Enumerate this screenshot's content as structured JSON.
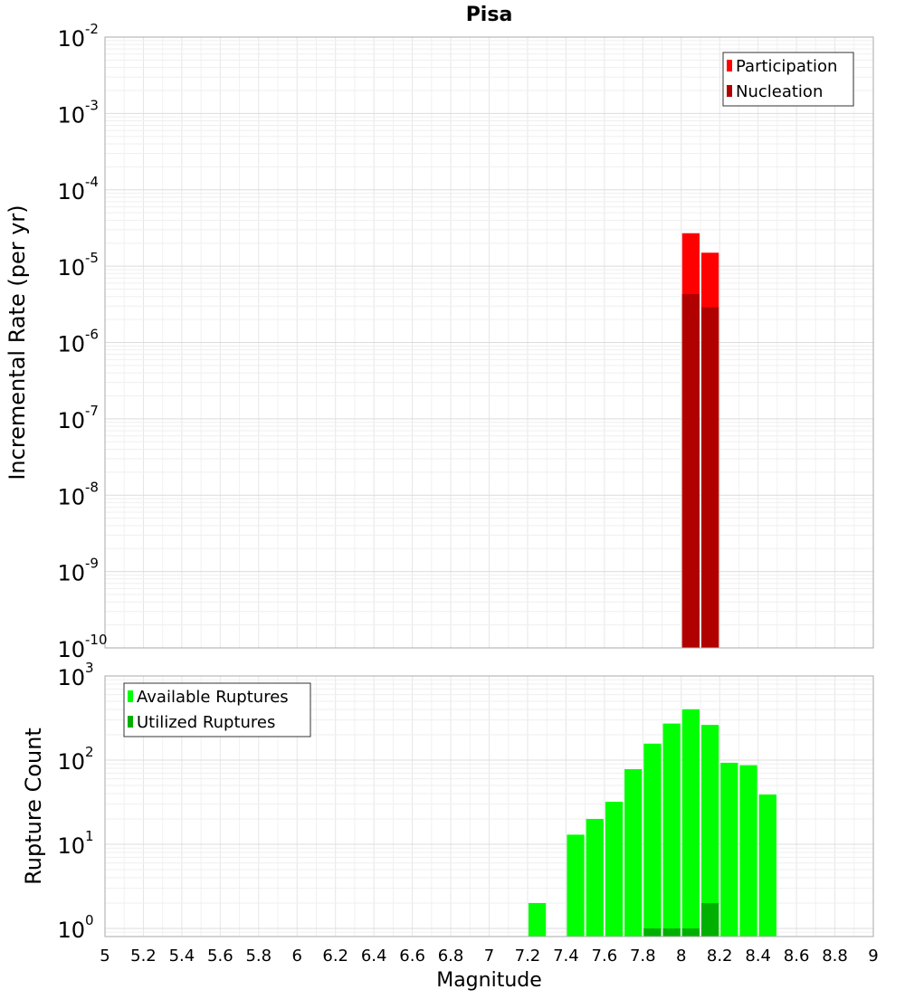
{
  "chart_data": [
    {
      "type": "bar",
      "title": "Pisa",
      "xlabel": "",
      "ylabel": "Incremental Rate (per yr)",
      "yscale": "log",
      "ylim": [
        1e-10,
        0.01
      ],
      "xlim": [
        5,
        9
      ],
      "bin_width": 0.1,
      "y_tick_labels": [
        {
          "value": 1e-10,
          "base": "10",
          "exp": "-10"
        },
        {
          "value": 1e-09,
          "base": "10",
          "exp": "-9"
        },
        {
          "value": 1e-08,
          "base": "10",
          "exp": "-8"
        },
        {
          "value": 1e-07,
          "base": "10",
          "exp": "-7"
        },
        {
          "value": 1e-06,
          "base": "10",
          "exp": "-6"
        },
        {
          "value": 1e-05,
          "base": "10",
          "exp": "-5"
        },
        {
          "value": 0.0001,
          "base": "10",
          "exp": "-4"
        },
        {
          "value": 0.001,
          "base": "10",
          "exp": "-3"
        },
        {
          "value": 0.01,
          "base": "10",
          "exp": "-2"
        }
      ],
      "legend_position": "top-right",
      "grid": true,
      "series": [
        {
          "name": "Participation",
          "color": "#ff0000",
          "points": [
            {
              "x": 8.05,
              "y": 2.7e-05
            },
            {
              "x": 8.15,
              "y": 1.5e-05
            }
          ]
        },
        {
          "name": "Nucleation",
          "color": "#b00000",
          "points": [
            {
              "x": 8.05,
              "y": 4.3e-06
            },
            {
              "x": 8.15,
              "y": 2.9e-06
            }
          ]
        }
      ]
    },
    {
      "type": "bar",
      "title": "",
      "xlabel": "Magnitude",
      "ylabel": "Rupture Count",
      "yscale": "log",
      "ylim": [
        0.8,
        1000
      ],
      "xlim": [
        5,
        9
      ],
      "bin_width": 0.1,
      "x_tick_labels": [
        "5",
        "5.2",
        "5.4",
        "5.6",
        "5.8",
        "6",
        "6.2",
        "6.4",
        "6.6",
        "6.8",
        "7",
        "7.2",
        "7.4",
        "7.6",
        "7.8",
        "8",
        "8.2",
        "8.4",
        "8.6",
        "8.8",
        "9"
      ],
      "y_tick_labels": [
        {
          "value": 1,
          "base": "10",
          "exp": "0"
        },
        {
          "value": 10,
          "base": "10",
          "exp": "1"
        },
        {
          "value": 100,
          "base": "10",
          "exp": "2"
        },
        {
          "value": 1000,
          "base": "10",
          "exp": "3"
        }
      ],
      "legend_position": "top-left",
      "grid": true,
      "series": [
        {
          "name": "Available Ruptures",
          "color": "#00ff00",
          "points": [
            {
              "x": 7.25,
              "y": 2
            },
            {
              "x": 7.45,
              "y": 13
            },
            {
              "x": 7.55,
              "y": 20
            },
            {
              "x": 7.65,
              "y": 32
            },
            {
              "x": 7.75,
              "y": 78
            },
            {
              "x": 7.85,
              "y": 157
            },
            {
              "x": 7.95,
              "y": 272
            },
            {
              "x": 8.05,
              "y": 402
            },
            {
              "x": 8.15,
              "y": 262
            },
            {
              "x": 8.25,
              "y": 93
            },
            {
              "x": 8.35,
              "y": 87
            },
            {
              "x": 8.45,
              "y": 39
            }
          ]
        },
        {
          "name": "Utilized Ruptures",
          "color": "#00b000",
          "points": [
            {
              "x": 7.85,
              "y": 1
            },
            {
              "x": 7.95,
              "y": 1
            },
            {
              "x": 8.05,
              "y": 1
            },
            {
              "x": 8.15,
              "y": 2
            }
          ]
        }
      ]
    }
  ]
}
